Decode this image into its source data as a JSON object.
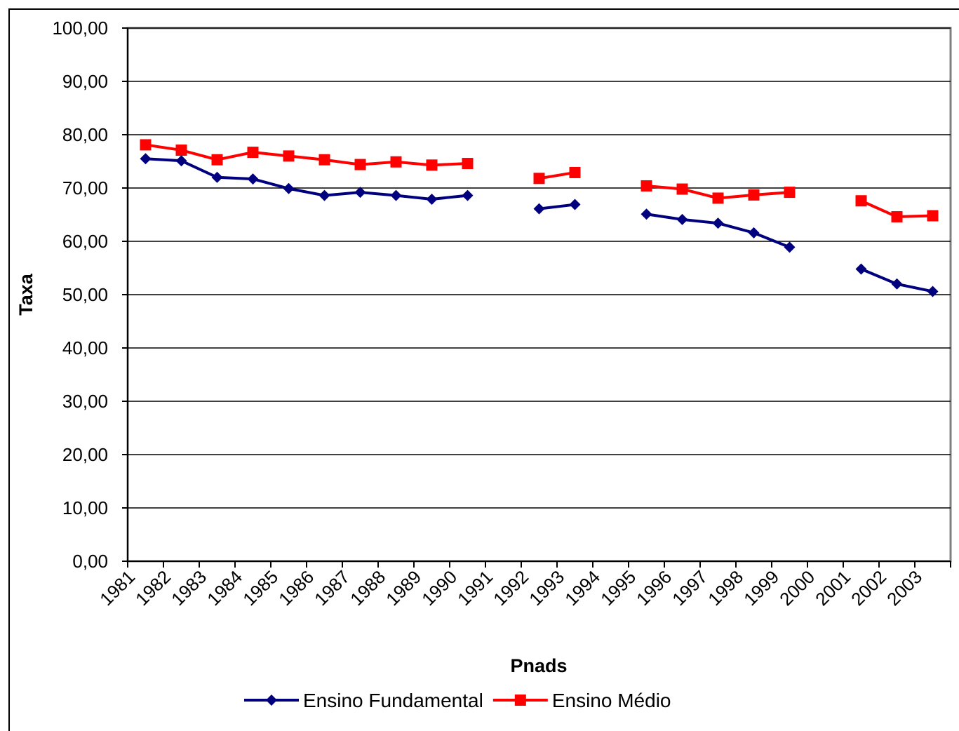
{
  "chart_data": {
    "type": "line",
    "title": "",
    "xlabel": "Pnads",
    "ylabel": "Taxa",
    "categories": [
      "1981",
      "1982",
      "1983",
      "1984",
      "1985",
      "1986",
      "1987",
      "1988",
      "1989",
      "1990",
      "1991",
      "1992",
      "1993",
      "1994",
      "1995",
      "1996",
      "1997",
      "1998",
      "1999",
      "2000",
      "2001",
      "2002",
      "2003"
    ],
    "ylim": [
      0,
      100
    ],
    "yticks": [
      "0,00",
      "10,00",
      "20,00",
      "30,00",
      "40,00",
      "50,00",
      "60,00",
      "70,00",
      "80,00",
      "90,00",
      "100,00"
    ],
    "grid": true,
    "legend_position": "bottom",
    "series": [
      {
        "name": "Ensino Fundamental",
        "color": "#00007f",
        "marker": "diamond",
        "values": [
          75.5,
          75.1,
          72.0,
          71.7,
          69.9,
          68.6,
          69.2,
          68.6,
          67.9,
          68.6,
          null,
          66.1,
          66.9,
          null,
          65.1,
          64.1,
          63.4,
          61.6,
          58.9,
          null,
          54.8,
          52.0,
          50.6
        ]
      },
      {
        "name": "Ensino Médio",
        "color": "#ff0000",
        "marker": "square",
        "values": [
          78.1,
          77.1,
          75.3,
          76.7,
          76.0,
          75.3,
          74.4,
          74.9,
          74.3,
          74.6,
          null,
          71.8,
          72.9,
          null,
          70.4,
          69.8,
          68.1,
          68.7,
          69.2,
          null,
          67.6,
          64.6,
          64.8
        ]
      }
    ]
  }
}
